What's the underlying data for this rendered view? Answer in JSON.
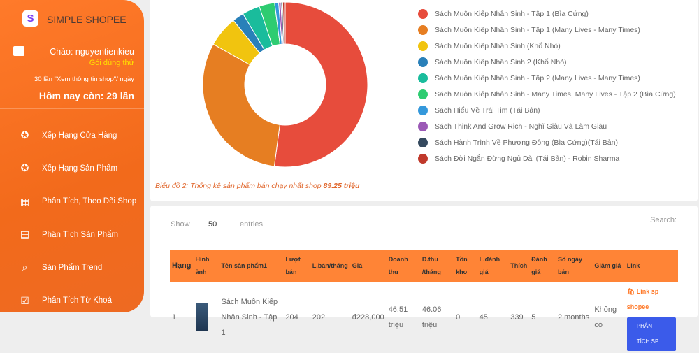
{
  "sidebar": {
    "brand": "SIMPLE SHOPEE",
    "greeting": "Chào: nguyentienkieu",
    "plan": "Gói dùng thử",
    "quota": "30 lần \"Xem thông tin shop\"/ ngày",
    "remaining": "Hôm nay còn: 29 lần",
    "items": [
      {
        "label": "Xếp Hạng Cửa Hàng",
        "icon": "star-circle-icon"
      },
      {
        "label": "Xếp Hạng Sản Phẩm",
        "icon": "star-circle-icon"
      },
      {
        "label": "Phân Tích, Theo Dõi Shop",
        "icon": "store-icon"
      },
      {
        "label": "Phân Tích Sản Phẩm",
        "icon": "archive-box-icon"
      },
      {
        "label": "Sản Phẩm Trend",
        "icon": "trend-search-icon"
      },
      {
        "label": "Phân Tích Từ Khoá",
        "icon": "checklist-icon"
      }
    ]
  },
  "chart_data": {
    "type": "pie",
    "donut": true,
    "caption_prefix": "Biểu đồ 2: Thống kê sản phẩm bán chạy nhất shop ",
    "caption_total": "89.25 triệu",
    "legend_position": "right",
    "series": [
      {
        "name": "Sách Muôn Kiếp Nhân Sinh - Tập 1 (Bìa Cứng)",
        "value": 46.51,
        "color": "#e74c3c"
      },
      {
        "name": "Sách Muôn Kiếp Nhân Sinh - Tập 1 (Many Lives - Many Times)",
        "value": 27.7,
        "color": "#e67e22"
      },
      {
        "name": "Sách Muôn Kiếp Nhân Sinh (Khổ Nhỏ)",
        "value": 5.4,
        "color": "#f1c40f"
      },
      {
        "name": "Sách Muôn Kiếp Nhân Sinh 2 (Khổ Nhỏ)",
        "value": 2.0,
        "color": "#2980b9"
      },
      {
        "name": "Sách Muôn Kiếp Nhân Sinh - Tập 2 (Many Lives - Many Times)",
        "value": 3.1,
        "color": "#1abc9c"
      },
      {
        "name": "Sách Muôn Kiếp Nhân Sinh - Many Times, Many Lives - Tập 2 (Bìa Cứng)",
        "value": 2.7,
        "color": "#2ecc71"
      },
      {
        "name": "Sách Hiểu Về Trái Tim (Tái Bản)",
        "value": 0.7,
        "color": "#3498db"
      },
      {
        "name": "Sách Think And Grow Rich - Nghĩ Giàu Và Làm Giàu",
        "value": 0.4,
        "color": "#9b59b6"
      },
      {
        "name": "Sách Hành Trình Về Phương Đông (Bìa Cứng)(Tái Bản)",
        "value": 0.3,
        "color": "#34495e"
      },
      {
        "name": "Sách Đời Ngắn Đừng Ngủ Dài (Tái Bản) - Robin Sharma",
        "value": 0.44,
        "color": "#c0392b"
      }
    ]
  },
  "table": {
    "show_label": "Show",
    "page_size": "50",
    "entries_label": "entries",
    "search_label": "Search:",
    "headers": [
      "Hạng",
      "Hình ảnh",
      "Tên sản phẩm1",
      "Lượt bán",
      "L.bán/tháng",
      "Giá",
      "Doanh thu",
      "D.thu /tháng",
      "Tồn kho",
      "L.đánh giá",
      "Thích",
      "Đánh giá",
      "Số ngày bán",
      "Giảm giá",
      "Link"
    ],
    "rows": [
      {
        "rank": "1",
        "name": "Sách Muôn Kiếp Nhân Sinh - Tập 1",
        "sold": "204",
        "sold_month": "202",
        "price": "đ228,000",
        "revenue": "46.51 triệu",
        "revenue_month": "46.06 triệu",
        "stock": "0",
        "reviews": "45",
        "likes": "339",
        "rating": "5",
        "days": "2 months",
        "discount": "Không có",
        "link": "Link sp shopee",
        "analyze": "PHÂN TÍCH SP"
      }
    ]
  }
}
